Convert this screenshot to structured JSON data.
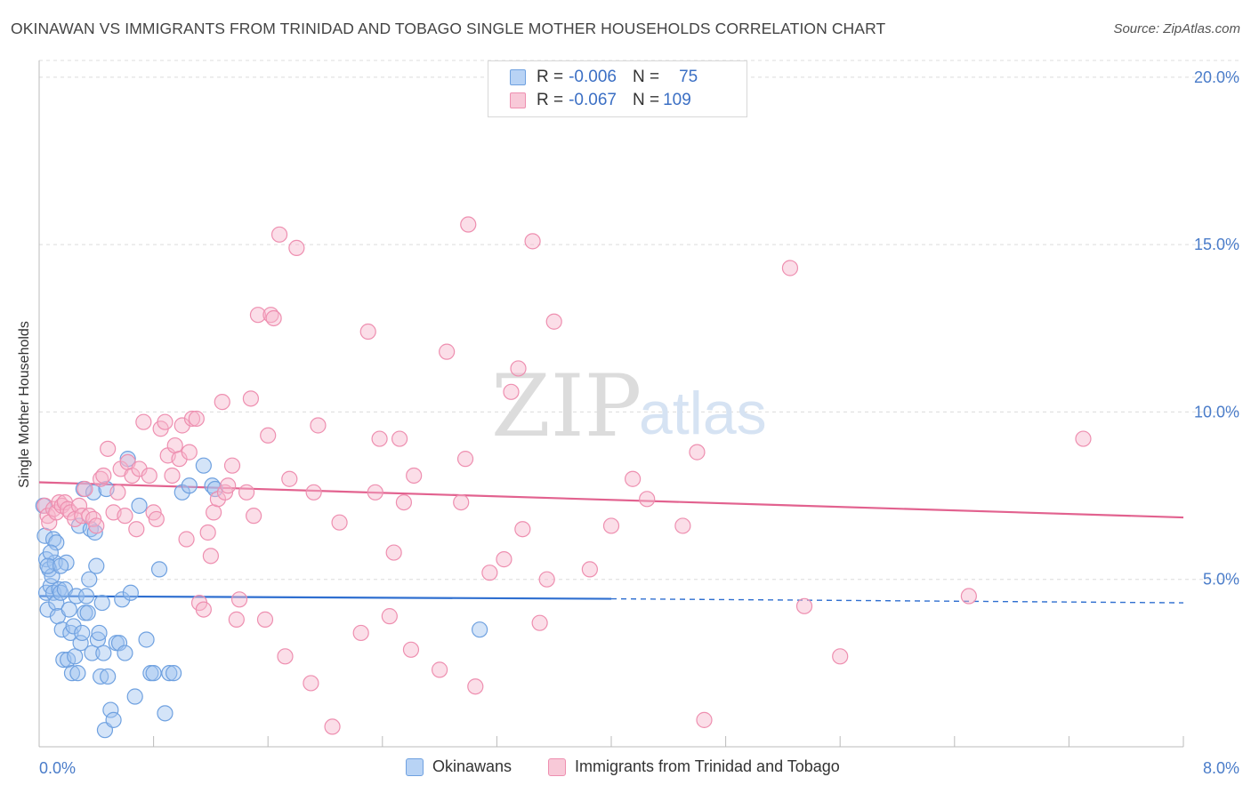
{
  "title": "OKINAWAN VS IMMIGRANTS FROM TRINIDAD AND TOBAGO SINGLE MOTHER HOUSEHOLDS CORRELATION CHART",
  "source": "Source: ZipAtlas.com",
  "watermark": {
    "part1": "ZIP",
    "part2": "atlas"
  },
  "legend_top": {
    "rows": [
      {
        "r_label": "R = ",
        "r_value": "-0.006",
        "n_label": "N = ",
        "n_value": "75",
        "color": "#6fa1e0"
      },
      {
        "r_label": "R = ",
        "r_value": "-0.067",
        "n_label": "N = ",
        "n_value": "109",
        "color": "#ee8fb0"
      }
    ]
  },
  "legend_bottom": [
    {
      "label": "Okinawans",
      "color": "#6fa1e0"
    },
    {
      "label": "Immigrants from Trinidad and Tobago",
      "color": "#ee8fb0"
    }
  ],
  "chart_data": {
    "type": "scatter",
    "title": "OKINAWAN VS IMMIGRANTS FROM TRINIDAD AND TOBAGO SINGLE MOTHER HOUSEHOLDS CORRELATION CHART",
    "xlabel": "",
    "ylabel": "Single Mother Households",
    "xlim": [
      0,
      8
    ],
    "ylim": [
      0,
      20.5
    ],
    "x_tick_labels": [
      "0.0%",
      "8.0%"
    ],
    "y_ticks": [
      5,
      10,
      15,
      20
    ],
    "y_tick_labels": [
      "5.0%",
      "10.0%",
      "15.0%",
      "20.0%"
    ],
    "grid": true,
    "legend_position": "top-center",
    "series": [
      {
        "name": "Okinawans",
        "color": "#6fa1e0",
        "trend": {
          "x": [
            0,
            4.0,
            8.0
          ],
          "y": [
            4.5,
            4.42,
            4.3
          ],
          "dashed_from_x": 4.0
        },
        "points": [
          [
            0.03,
            7.2
          ],
          [
            0.04,
            6.3
          ],
          [
            0.05,
            5.6
          ],
          [
            0.05,
            4.6
          ],
          [
            0.06,
            4.1
          ],
          [
            0.07,
            5.3
          ],
          [
            0.08,
            4.8
          ],
          [
            0.09,
            5.1
          ],
          [
            0.1,
            6.2
          ],
          [
            0.1,
            4.6
          ],
          [
            0.11,
            5.5
          ],
          [
            0.12,
            4.3
          ],
          [
            0.13,
            3.9
          ],
          [
            0.14,
            4.7
          ],
          [
            0.15,
            4.6
          ],
          [
            0.16,
            3.5
          ],
          [
            0.17,
            2.6
          ],
          [
            0.18,
            4.7
          ],
          [
            0.19,
            5.5
          ],
          [
            0.2,
            2.6
          ],
          [
            0.21,
            4.1
          ],
          [
            0.22,
            3.4
          ],
          [
            0.23,
            2.2
          ],
          [
            0.24,
            3.6
          ],
          [
            0.25,
            2.7
          ],
          [
            0.26,
            4.5
          ],
          [
            0.27,
            2.2
          ],
          [
            0.28,
            6.6
          ],
          [
            0.29,
            3.1
          ],
          [
            0.3,
            3.4
          ],
          [
            0.31,
            7.7
          ],
          [
            0.32,
            4.0
          ],
          [
            0.33,
            4.5
          ],
          [
            0.34,
            4.0
          ],
          [
            0.35,
            5.0
          ],
          [
            0.36,
            6.5
          ],
          [
            0.37,
            2.8
          ],
          [
            0.38,
            7.6
          ],
          [
            0.39,
            6.4
          ],
          [
            0.4,
            5.4
          ],
          [
            0.41,
            3.2
          ],
          [
            0.42,
            3.4
          ],
          [
            0.43,
            2.1
          ],
          [
            0.44,
            4.3
          ],
          [
            0.45,
            2.8
          ],
          [
            0.46,
            0.5
          ],
          [
            0.47,
            7.7
          ],
          [
            0.48,
            2.1
          ],
          [
            0.5,
            1.1
          ],
          [
            0.52,
            0.8
          ],
          [
            0.54,
            3.1
          ],
          [
            0.56,
            3.1
          ],
          [
            0.58,
            4.4
          ],
          [
            0.6,
            2.8
          ],
          [
            0.62,
            8.6
          ],
          [
            0.64,
            4.6
          ],
          [
            0.67,
            1.5
          ],
          [
            0.7,
            7.2
          ],
          [
            0.75,
            3.2
          ],
          [
            0.78,
            2.2
          ],
          [
            0.8,
            2.2
          ],
          [
            0.84,
            5.3
          ],
          [
            0.88,
            1.0
          ],
          [
            0.91,
            2.2
          ],
          [
            0.94,
            2.2
          ],
          [
            1.0,
            7.6
          ],
          [
            1.05,
            7.8
          ],
          [
            1.15,
            8.4
          ],
          [
            1.21,
            7.8
          ],
          [
            1.23,
            7.7
          ],
          [
            0.12,
            6.1
          ],
          [
            0.08,
            5.8
          ],
          [
            0.06,
            5.4
          ],
          [
            0.15,
            5.4
          ],
          [
            3.08,
            3.5
          ]
        ]
      },
      {
        "name": "Immigrants from Trinidad and Tobago",
        "color": "#ee8fb0",
        "trend": {
          "x": [
            0,
            8.0
          ],
          "y": [
            7.9,
            6.85
          ]
        },
        "points": [
          [
            0.04,
            7.2
          ],
          [
            0.06,
            6.9
          ],
          [
            0.07,
            6.7
          ],
          [
            0.1,
            7.1
          ],
          [
            0.12,
            7.0
          ],
          [
            0.14,
            7.3
          ],
          [
            0.16,
            7.2
          ],
          [
            0.18,
            7.3
          ],
          [
            0.2,
            7.1
          ],
          [
            0.22,
            7.0
          ],
          [
            0.25,
            6.8
          ],
          [
            0.28,
            7.2
          ],
          [
            0.3,
            6.9
          ],
          [
            0.32,
            7.7
          ],
          [
            0.35,
            6.9
          ],
          [
            0.38,
            6.8
          ],
          [
            0.4,
            6.6
          ],
          [
            0.43,
            8.0
          ],
          [
            0.45,
            8.1
          ],
          [
            0.48,
            8.9
          ],
          [
            0.52,
            7.0
          ],
          [
            0.55,
            7.6
          ],
          [
            0.57,
            8.3
          ],
          [
            0.62,
            8.5
          ],
          [
            0.6,
            6.9
          ],
          [
            0.65,
            8.1
          ],
          [
            0.68,
            6.5
          ],
          [
            0.7,
            8.3
          ],
          [
            0.73,
            9.7
          ],
          [
            0.77,
            8.1
          ],
          [
            0.8,
            7.0
          ],
          [
            0.82,
            6.8
          ],
          [
            0.85,
            9.5
          ],
          [
            0.88,
            9.7
          ],
          [
            0.9,
            8.7
          ],
          [
            0.93,
            8.1
          ],
          [
            0.95,
            9.0
          ],
          [
            0.98,
            8.6
          ],
          [
            1.0,
            9.6
          ],
          [
            1.03,
            6.2
          ],
          [
            1.05,
            8.8
          ],
          [
            1.07,
            9.8
          ],
          [
            1.1,
            9.8
          ],
          [
            1.12,
            4.3
          ],
          [
            1.15,
            4.1
          ],
          [
            1.18,
            6.4
          ],
          [
            1.2,
            5.7
          ],
          [
            1.22,
            7.0
          ],
          [
            1.25,
            7.4
          ],
          [
            1.28,
            10.3
          ],
          [
            1.3,
            7.6
          ],
          [
            1.32,
            7.8
          ],
          [
            1.35,
            8.4
          ],
          [
            1.38,
            3.8
          ],
          [
            1.4,
            4.4
          ],
          [
            1.45,
            7.6
          ],
          [
            1.48,
            10.4
          ],
          [
            1.5,
            6.9
          ],
          [
            1.53,
            12.9
          ],
          [
            1.58,
            3.8
          ],
          [
            1.6,
            9.3
          ],
          [
            1.62,
            12.9
          ],
          [
            1.64,
            12.8
          ],
          [
            1.68,
            15.3
          ],
          [
            1.72,
            2.7
          ],
          [
            1.75,
            8.0
          ],
          [
            1.8,
            14.9
          ],
          [
            1.9,
            1.9
          ],
          [
            1.92,
            7.6
          ],
          [
            1.95,
            9.6
          ],
          [
            2.05,
            0.6
          ],
          [
            2.1,
            6.7
          ],
          [
            2.25,
            3.4
          ],
          [
            2.3,
            12.4
          ],
          [
            2.35,
            7.6
          ],
          [
            2.38,
            9.2
          ],
          [
            2.45,
            3.9
          ],
          [
            2.48,
            5.8
          ],
          [
            2.52,
            9.2
          ],
          [
            2.55,
            7.3
          ],
          [
            2.6,
            2.9
          ],
          [
            2.62,
            8.1
          ],
          [
            2.8,
            2.3
          ],
          [
            2.85,
            11.8
          ],
          [
            2.95,
            7.3
          ],
          [
            2.98,
            8.6
          ],
          [
            3.0,
            15.6
          ],
          [
            3.05,
            1.8
          ],
          [
            3.15,
            5.2
          ],
          [
            3.25,
            5.6
          ],
          [
            3.3,
            10.6
          ],
          [
            3.35,
            11.3
          ],
          [
            3.38,
            6.5
          ],
          [
            3.45,
            15.1
          ],
          [
            3.5,
            3.7
          ],
          [
            3.55,
            5.0
          ],
          [
            3.6,
            12.7
          ],
          [
            3.85,
            5.3
          ],
          [
            4.0,
            6.6
          ],
          [
            4.15,
            8.0
          ],
          [
            4.25,
            7.4
          ],
          [
            4.5,
            6.6
          ],
          [
            4.6,
            8.8
          ],
          [
            4.65,
            0.8
          ],
          [
            5.25,
            14.3
          ],
          [
            5.35,
            4.2
          ],
          [
            5.6,
            2.7
          ],
          [
            6.5,
            4.5
          ],
          [
            7.3,
            9.2
          ]
        ]
      }
    ]
  }
}
